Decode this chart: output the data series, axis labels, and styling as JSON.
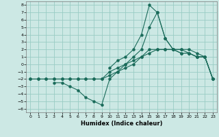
{
  "xlabel": "Humidex (Indice chaleur)",
  "bg_color": "#cce8e4",
  "grid_color": "#99ccc4",
  "line_color": "#1a6b5a",
  "xlim": [
    -0.5,
    23.5
  ],
  "ylim": [
    -6.5,
    8.5
  ],
  "xticks": [
    0,
    1,
    2,
    3,
    4,
    5,
    6,
    7,
    8,
    9,
    10,
    11,
    12,
    13,
    14,
    15,
    16,
    17,
    18,
    19,
    20,
    21,
    22,
    23
  ],
  "yticks": [
    -6,
    -5,
    -4,
    -3,
    -2,
    -1,
    0,
    1,
    2,
    3,
    4,
    5,
    6,
    7,
    8
  ],
  "line1_x": [
    0,
    1,
    2,
    3,
    4,
    5,
    6,
    7,
    8,
    9,
    10,
    11,
    12,
    13,
    14,
    15,
    16,
    17,
    18,
    19,
    20,
    21,
    22,
    23
  ],
  "line1_y": [
    -2,
    -2,
    -2,
    -2,
    -2,
    -2,
    -2,
    -2,
    -2,
    -2,
    -1.5,
    -1,
    -0.5,
    0,
    1,
    2,
    2,
    2,
    2,
    2,
    1.5,
    1,
    1,
    -2
  ],
  "line2_x": [
    0,
    1,
    2,
    3,
    4,
    5,
    6,
    7,
    8,
    9,
    10,
    11,
    12,
    13,
    14,
    15,
    16,
    17,
    18,
    19,
    20,
    21,
    22,
    23
  ],
  "line2_y": [
    -2,
    -2,
    -2,
    -2,
    -2,
    -2,
    -2,
    -2,
    -2,
    -2,
    -1,
    -0.5,
    0,
    0.5,
    1,
    1.5,
    2,
    2,
    2,
    2,
    2,
    1.5,
    1,
    -2
  ],
  "line3_x": [
    3,
    4,
    5,
    6,
    7,
    8,
    9,
    10,
    11,
    12,
    13,
    14,
    15,
    16,
    17,
    18,
    19,
    20,
    21,
    22,
    23
  ],
  "line3_y": [
    -2.5,
    -2.5,
    -3,
    -3.5,
    -4.5,
    -5,
    -5.5,
    -2,
    -1,
    0,
    1,
    2,
    5,
    7,
    3.5,
    2,
    1.5,
    1.5,
    1,
    1,
    -2
  ],
  "line4_x": [
    10,
    11,
    12,
    13,
    14,
    15,
    16,
    17,
    18,
    19,
    20,
    21,
    22,
    23
  ],
  "line4_y": [
    -0.5,
    0.5,
    1,
    2,
    4,
    8,
    7,
    3.5,
    2,
    1.5,
    1.5,
    1,
    1,
    -2
  ]
}
